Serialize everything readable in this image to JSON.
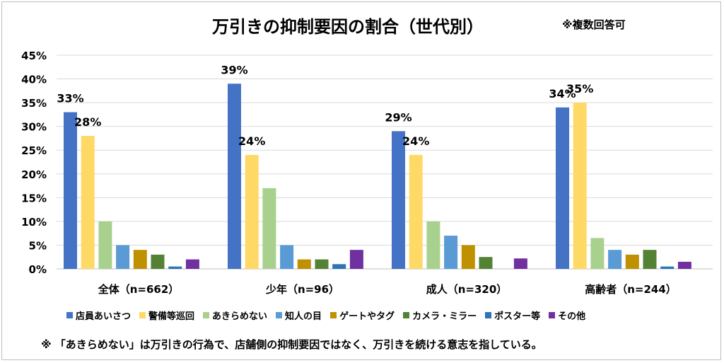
{
  "chart_data": {
    "type": "bar",
    "title": "万引きの抑制要因の割合（世代別）",
    "note": "※複数回答可",
    "categories": [
      "全体（n=662）",
      "少年（n=96）",
      "成人（n=320）",
      "高齢者（n=244）"
    ],
    "ylim": [
      0,
      45
    ],
    "yticks": [
      "0%",
      "5%",
      "10%",
      "15%",
      "20%",
      "25%",
      "30%",
      "35%",
      "40%",
      "45%"
    ],
    "grid": true,
    "legend_position": "bottom",
    "series": [
      {
        "name": "店員あいさつ",
        "color": "#4472C4",
        "values": [
          33,
          39,
          29,
          34
        ],
        "labels": [
          "33%",
          "39%",
          "29%",
          "34%"
        ]
      },
      {
        "name": "警備等巡回",
        "color": "#FFD966",
        "values": [
          28,
          24,
          24,
          35
        ],
        "labels": [
          "28%",
          "24%",
          "24%",
          "35%"
        ]
      },
      {
        "name": "あきらめない",
        "color": "#A9D18E",
        "values": [
          10,
          17,
          10,
          6.5
        ],
        "labels": []
      },
      {
        "name": "知人の目",
        "color": "#5B9BD5",
        "values": [
          5,
          5,
          7,
          4
        ],
        "labels": []
      },
      {
        "name": "ゲートやタグ",
        "color": "#BF9000",
        "values": [
          4,
          2,
          5,
          3
        ],
        "labels": []
      },
      {
        "name": "カメラ・ミラー",
        "color": "#548235",
        "values": [
          3,
          2,
          2.5,
          4
        ],
        "labels": []
      },
      {
        "name": "ポスター等",
        "color": "#2E75B6",
        "values": [
          0.5,
          1,
          0,
          0.5
        ],
        "labels": []
      },
      {
        "name": "その他",
        "color": "#7030A0",
        "values": [
          2,
          4,
          2.2,
          1.5
        ],
        "labels": []
      }
    ]
  },
  "footnote": "※ 「あきらめない」は万引きの行為で、店舗側の抑制要因ではなく、万引きを続ける意志を指している。"
}
